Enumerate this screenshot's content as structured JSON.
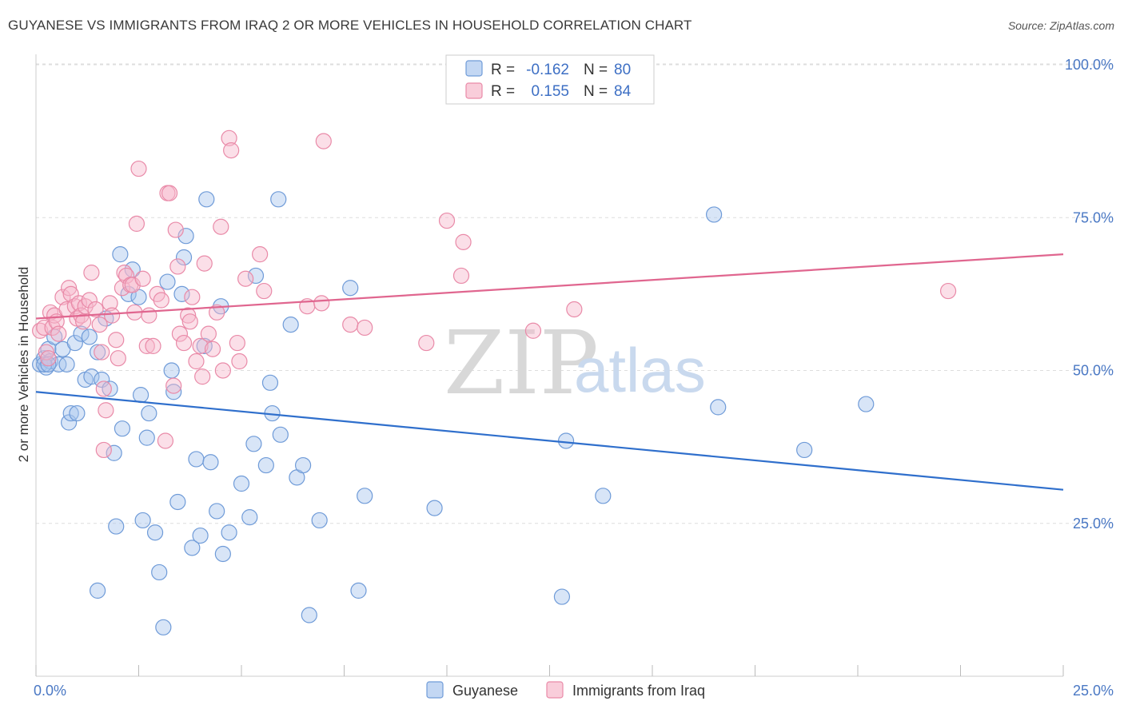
{
  "title": "GUYANESE VS IMMIGRANTS FROM IRAQ 2 OR MORE VEHICLES IN HOUSEHOLD CORRELATION CHART",
  "source": "Source: ZipAtlas.com",
  "watermark": {
    "zip": "ZIP",
    "atlas": "atlas"
  },
  "colors": {
    "blue_fill": "#a9c6ee",
    "blue_stroke": "#6f9bd8",
    "blue_line": "#2f6fcc",
    "pink_fill": "#f6b8cb",
    "pink_stroke": "#e98aa8",
    "pink_line": "#e0668f",
    "tick_color": "#4a78c4",
    "grid": "#dddddd"
  },
  "legend": {
    "position": "top-center",
    "rows": [
      {
        "r_label": "R =",
        "r_value": "-0.162",
        "n_label": "N =",
        "n_value": "80"
      },
      {
        "r_label": "R =",
        "r_value": "0.155",
        "n_label": "N =",
        "n_value": "84"
      }
    ]
  },
  "chart_data": {
    "type": "scatter",
    "title": "GUYANESE VS IMMIGRANTS FROM IRAQ 2 OR MORE VEHICLES IN HOUSEHOLD CORRELATION CHART",
    "xlabel": "",
    "ylabel": "2 or more Vehicles in Household",
    "xlim": [
      0,
      25
    ],
    "ylim": [
      0,
      100
    ],
    "x_tick_labels": [
      "0.0%",
      "25.0%"
    ],
    "y_ticks": [
      25,
      50,
      75,
      100
    ],
    "y_tick_labels": [
      "25.0%",
      "50.0%",
      "75.0%",
      "100.0%"
    ],
    "grid": true,
    "series": [
      {
        "name": "Guyanese",
        "trend": {
          "x": [
            0,
            25
          ],
          "y": [
            46.5,
            30.5
          ]
        },
        "points": [
          [
            0.1,
            51
          ],
          [
            0.2,
            52
          ],
          [
            0.25,
            50.5
          ],
          [
            0.3,
            53.5
          ],
          [
            0.35,
            51.5
          ],
          [
            0.45,
            55.5
          ],
          [
            0.55,
            51
          ],
          [
            0.65,
            53.5
          ],
          [
            0.75,
            51
          ],
          [
            0.8,
            41.5
          ],
          [
            0.85,
            43
          ],
          [
            0.95,
            54.5
          ],
          [
            1.0,
            43
          ],
          [
            1.1,
            56
          ],
          [
            1.2,
            48.5
          ],
          [
            1.3,
            55.5
          ],
          [
            1.35,
            49
          ],
          [
            1.5,
            53
          ],
          [
            1.6,
            48.5
          ],
          [
            1.7,
            58.5
          ],
          [
            1.8,
            47
          ],
          [
            1.9,
            36.5
          ],
          [
            1.95,
            24.5
          ],
          [
            2.05,
            69
          ],
          [
            2.1,
            40.5
          ],
          [
            2.25,
            62.5
          ],
          [
            2.35,
            66.5
          ],
          [
            2.5,
            62
          ],
          [
            2.55,
            46
          ],
          [
            2.6,
            25.5
          ],
          [
            2.7,
            39
          ],
          [
            2.75,
            43
          ],
          [
            2.9,
            23.5
          ],
          [
            3.0,
            17
          ],
          [
            3.1,
            8
          ],
          [
            3.2,
            64.5
          ],
          [
            3.3,
            50
          ],
          [
            3.35,
            46.5
          ],
          [
            3.45,
            28.5
          ],
          [
            3.55,
            62.5
          ],
          [
            3.6,
            68.5
          ],
          [
            3.65,
            72
          ],
          [
            3.8,
            21
          ],
          [
            3.9,
            35.5
          ],
          [
            4.0,
            23
          ],
          [
            4.1,
            54
          ],
          [
            4.15,
            78
          ],
          [
            4.25,
            35
          ],
          [
            4.4,
            27
          ],
          [
            4.5,
            60.5
          ],
          [
            4.55,
            20
          ],
          [
            4.7,
            23.5
          ],
          [
            5.0,
            31.5
          ],
          [
            5.2,
            26
          ],
          [
            5.3,
            38
          ],
          [
            5.35,
            65.5
          ],
          [
            5.6,
            34.5
          ],
          [
            5.7,
            48
          ],
          [
            5.75,
            43
          ],
          [
            5.9,
            78
          ],
          [
            5.95,
            39.5
          ],
          [
            6.2,
            57.5
          ],
          [
            6.35,
            32.5
          ],
          [
            6.5,
            34.5
          ],
          [
            6.65,
            10
          ],
          [
            6.9,
            25.5
          ],
          [
            7.65,
            63.5
          ],
          [
            7.85,
            14
          ],
          [
            8.0,
            29.5
          ],
          [
            9.7,
            27.5
          ],
          [
            12.8,
            13
          ],
          [
            12.9,
            38.5
          ],
          [
            13.8,
            29.5
          ],
          [
            16.5,
            75.5
          ],
          [
            16.6,
            44
          ],
          [
            18.7,
            37
          ],
          [
            20.2,
            44.5
          ],
          [
            1.5,
            14
          ],
          [
            0.2,
            51
          ],
          [
            0.3,
            51
          ]
        ]
      },
      {
        "name": "Immigrants from Iraq",
        "trend": {
          "x": [
            0,
            25
          ],
          "y": [
            58.5,
            69
          ]
        },
        "points": [
          [
            0.1,
            56.5
          ],
          [
            0.2,
            57
          ],
          [
            0.25,
            53
          ],
          [
            0.3,
            52
          ],
          [
            0.35,
            59.5
          ],
          [
            0.4,
            57
          ],
          [
            0.45,
            59
          ],
          [
            0.5,
            58
          ],
          [
            0.55,
            56
          ],
          [
            0.65,
            62
          ],
          [
            0.75,
            60
          ],
          [
            0.8,
            63.5
          ],
          [
            0.85,
            62.5
          ],
          [
            0.95,
            60.5
          ],
          [
            1.0,
            58.5
          ],
          [
            1.05,
            61
          ],
          [
            1.1,
            59
          ],
          [
            1.15,
            58
          ],
          [
            1.2,
            60.5
          ],
          [
            1.3,
            61.5
          ],
          [
            1.35,
            66
          ],
          [
            1.45,
            60
          ],
          [
            1.55,
            57.5
          ],
          [
            1.6,
            53
          ],
          [
            1.65,
            47
          ],
          [
            1.7,
            43.5
          ],
          [
            1.65,
            37
          ],
          [
            1.8,
            61
          ],
          [
            1.85,
            59
          ],
          [
            1.95,
            55
          ],
          [
            2.0,
            52
          ],
          [
            2.1,
            63.5
          ],
          [
            2.15,
            66
          ],
          [
            2.2,
            65.5
          ],
          [
            2.3,
            64
          ],
          [
            2.35,
            64
          ],
          [
            2.4,
            59.5
          ],
          [
            2.45,
            74
          ],
          [
            2.5,
            83
          ],
          [
            2.6,
            65
          ],
          [
            2.7,
            54
          ],
          [
            2.75,
            59
          ],
          [
            2.85,
            54
          ],
          [
            2.95,
            62.5
          ],
          [
            3.05,
            61.5
          ],
          [
            3.15,
            38.5
          ],
          [
            3.2,
            79
          ],
          [
            3.25,
            79
          ],
          [
            3.35,
            47.5
          ],
          [
            3.4,
            73
          ],
          [
            3.45,
            67
          ],
          [
            3.5,
            56
          ],
          [
            3.6,
            54.5
          ],
          [
            3.7,
            59
          ],
          [
            3.75,
            58
          ],
          [
            3.8,
            62
          ],
          [
            3.9,
            51.5
          ],
          [
            4.0,
            54
          ],
          [
            4.05,
            49
          ],
          [
            4.1,
            67.5
          ],
          [
            4.2,
            56
          ],
          [
            4.3,
            53.5
          ],
          [
            4.4,
            59.5
          ],
          [
            4.5,
            73.5
          ],
          [
            4.55,
            50
          ],
          [
            4.7,
            88
          ],
          [
            4.75,
            86
          ],
          [
            4.9,
            54.5
          ],
          [
            4.95,
            51.5
          ],
          [
            5.1,
            65
          ],
          [
            5.45,
            69
          ],
          [
            5.55,
            63
          ],
          [
            6.6,
            60.5
          ],
          [
            6.95,
            61
          ],
          [
            7.0,
            87.5
          ],
          [
            7.65,
            57.5
          ],
          [
            8.0,
            57
          ],
          [
            9.5,
            54.5
          ],
          [
            10.0,
            74.5
          ],
          [
            10.4,
            71
          ],
          [
            10.35,
            65.5
          ],
          [
            12.1,
            56.5
          ],
          [
            13.1,
            60
          ],
          [
            22.2,
            63
          ]
        ]
      }
    ]
  },
  "bottom_legend": {
    "position": "bottom-center",
    "items": [
      "Guyanese",
      "Immigrants from Iraq"
    ]
  }
}
